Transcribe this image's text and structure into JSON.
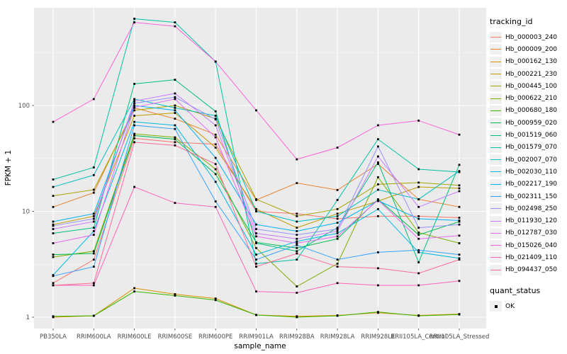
{
  "chart_data": {
    "type": "line",
    "title": "",
    "xlabel": "sample_name",
    "ylabel": "FPKM + 1",
    "y_scale": "log10",
    "y_ticks": [
      1,
      10,
      100
    ],
    "y_tick_labels": [
      "1",
      "10",
      "100"
    ],
    "y_minor_ticks": [
      3.162,
      31.62,
      316.2
    ],
    "ylim": [
      0.78,
      840
    ],
    "grid": "on",
    "panel_background": "#EBEBEB",
    "major_grid_color": "#FFFFFF",
    "minor_grid_color": "#FFFFFF",
    "tick_color": "#333333",
    "axis_text_color": "#4D4D4D",
    "marker": "black-square",
    "categories": [
      "PB350LA",
      "RRIM600LA",
      "RRIM600LE",
      "RRIM600SE",
      "RRIM600PE",
      "RRIM901LA",
      "RRIM928BA",
      "RRIM928LA",
      "RRIM928LE",
      "RRII105LA_Control",
      "RRII105LA_Stressed"
    ],
    "series": [
      {
        "name": "Hb_000003_240",
        "color": "#F8766D",
        "values": [
          2.1,
          3.5,
          49,
          45,
          43,
          10,
          9.5,
          8.5,
          9.0,
          9.0,
          8.7
        ]
      },
      {
        "name": "Hb_000009_200",
        "color": "#EA8331",
        "values": [
          11,
          15,
          95,
          75,
          53,
          12.8,
          18.5,
          15.9,
          28,
          13,
          11
        ]
      },
      {
        "name": "Hb_000162_130",
        "color": "#D89000",
        "values": [
          1.0,
          1.03,
          1.88,
          1.65,
          1.5,
          1.05,
          1.02,
          1.04,
          1.1,
          1.04,
          1.07
        ]
      },
      {
        "name": "Hb_000221_230",
        "color": "#C09B00",
        "values": [
          7.5,
          9.0,
          80,
          85,
          40,
          10.5,
          7.0,
          9.5,
          12.5,
          17,
          16.5
        ]
      },
      {
        "name": "Hb_000445_100",
        "color": "#A3A500",
        "values": [
          14,
          16,
          90,
          100,
          75,
          13,
          9.0,
          10.5,
          18,
          18.7,
          17.6
        ]
      },
      {
        "name": "Hb_000622_210",
        "color": "#7CAE00",
        "values": [
          3.7,
          4.2,
          54,
          50,
          25,
          4.5,
          1.95,
          3.2,
          21,
          6.3,
          5.0
        ]
      },
      {
        "name": "Hb_000680_180",
        "color": "#39B600",
        "values": [
          1.02,
          1.03,
          1.75,
          1.6,
          1.45,
          1.05,
          1.0,
          1.03,
          1.12,
          1.03,
          1.06
        ]
      },
      {
        "name": "Hb_000959_020",
        "color": "#00BB4E",
        "values": [
          3.9,
          4.0,
          52,
          48,
          22.5,
          5.1,
          4.5,
          5.5,
          13,
          6.0,
          8.0
        ]
      },
      {
        "name": "Hb_001519_060",
        "color": "#00BF7D",
        "values": [
          6.2,
          7.0,
          160,
          175,
          88,
          5.0,
          4.2,
          7.0,
          29,
          3.3,
          27.5
        ]
      },
      {
        "name": "Hb_001579_070",
        "color": "#00C1A3",
        "values": [
          20,
          26,
          660,
          610,
          260,
          3.2,
          3.5,
          12.8,
          48,
          25,
          23.5
        ]
      },
      {
        "name": "Hb_002007_070",
        "color": "#00BFC4",
        "values": [
          17,
          22,
          115,
          95,
          80,
          10,
          8.0,
          9.0,
          16,
          13,
          24
        ]
      },
      {
        "name": "Hb_002030_110",
        "color": "#00BAE0",
        "values": [
          2.5,
          6.5,
          70,
          65,
          19,
          3.9,
          5.2,
          6.2,
          10.5,
          4.1,
          3.6
        ]
      },
      {
        "name": "Hb_002217_190",
        "color": "#00B0F6",
        "values": [
          8.0,
          9.5,
          100,
          90,
          32,
          7.5,
          6.5,
          7.8,
          12.6,
          8.5,
          8.2
        ]
      },
      {
        "name": "Hb_002311_150",
        "color": "#35A2FF",
        "values": [
          2.45,
          3.0,
          65,
          60,
          12.4,
          3.5,
          4.8,
          3.5,
          4.1,
          4.3,
          3.9
        ]
      },
      {
        "name": "Hb_002498_250",
        "color": "#9590FF",
        "values": [
          7.3,
          8.5,
          105,
          120,
          74,
          6.8,
          6.0,
          6.8,
          41,
          7.0,
          7.5
        ]
      },
      {
        "name": "Hb_011930_120",
        "color": "#C77CFF",
        "values": [
          6.8,
          8.0,
          110,
          130,
          65,
          6.2,
          5.5,
          6.5,
          33,
          11,
          15.5
        ]
      },
      {
        "name": "Hb_012787_030",
        "color": "#E76BF3",
        "values": [
          5.0,
          6.0,
          96,
          115,
          50,
          5.8,
          5.0,
          5.8,
          12.8,
          5.5,
          5.9
        ]
      },
      {
        "name": "Hb_015026_040",
        "color": "#FA62DB",
        "values": [
          70,
          115,
          610,
          560,
          260,
          90,
          31,
          40,
          65,
          72,
          53
        ]
      },
      {
        "name": "Hb_021409_110",
        "color": "#FF62BC",
        "values": [
          2.0,
          2.0,
          17,
          12,
          11,
          1.75,
          1.7,
          2.1,
          2.0,
          2.0,
          2.2
        ]
      },
      {
        "name": "Hb_094437_050",
        "color": "#FF6A98",
        "values": [
          2.0,
          2.1,
          45,
          42,
          28,
          3.0,
          4.0,
          3.0,
          2.9,
          2.6,
          3.5
        ]
      }
    ],
    "legend": {
      "title": "tracking_id",
      "position": "right"
    },
    "legend2": {
      "title": "quant_status",
      "items": [
        {
          "label": "OK",
          "shape": "black-square"
        }
      ]
    }
  }
}
